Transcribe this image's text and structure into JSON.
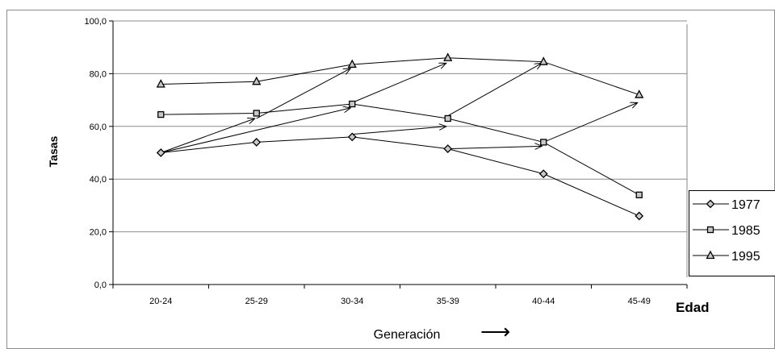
{
  "chart_data": {
    "type": "line",
    "categories": [
      "20-24",
      "25-29",
      "30-34",
      "35-39",
      "40-44",
      "45-49"
    ],
    "series": [
      {
        "name": "1977",
        "values": [
          50.0,
          54.0,
          56.0,
          51.5,
          42.0,
          26.0
        ],
        "marker": "diamond"
      },
      {
        "name": "1985",
        "values": [
          64.5,
          65.0,
          68.5,
          63.0,
          54.0,
          34.0
        ],
        "marker": "square"
      },
      {
        "name": "1995",
        "values": [
          76.0,
          77.0,
          83.5,
          86.0,
          84.5,
          72.0
        ],
        "marker": "triangle"
      }
    ],
    "ylim": [
      0,
      100
    ],
    "yticks": [
      0,
      20,
      40,
      60,
      80,
      100
    ],
    "ytick_labels": [
      "0,0",
      "20,0",
      "40,0",
      "60,0",
      "80,0",
      "100,0"
    ],
    "ylabel": "Tasas",
    "xlabel": "Edad",
    "footer_label": "Generación",
    "footer_arrow": "⟶",
    "grid": true,
    "legend_position": "right",
    "cohort_arrows": [
      {
        "from": [
          "20-24",
          50.0
        ],
        "to": [
          "25-29",
          63.0
        ]
      },
      {
        "from": [
          "20-24",
          50.0
        ],
        "to": [
          "30-34",
          67.0
        ]
      },
      {
        "from": [
          "25-29",
          63.0
        ],
        "to": [
          "30-34",
          82.0
        ]
      },
      {
        "from": [
          "30-34",
          57.0
        ],
        "to": [
          "35-39",
          60.0
        ]
      },
      {
        "from": [
          "30-34",
          69.0
        ],
        "to": [
          "35-39",
          84.0
        ]
      },
      {
        "from": [
          "35-39",
          51.5
        ],
        "to": [
          "40-44",
          52.5
        ]
      },
      {
        "from": [
          "35-39",
          64.0
        ],
        "to": [
          "40-44",
          84.0
        ]
      },
      {
        "from": [
          "40-44",
          54.0
        ],
        "to": [
          "45-49",
          69.0
        ]
      }
    ]
  }
}
